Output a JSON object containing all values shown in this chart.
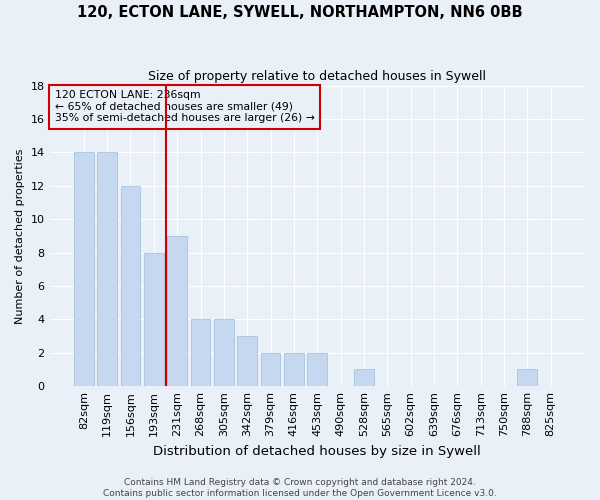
{
  "title": "120, ECTON LANE, SYWELL, NORTHAMPTON, NN6 0BB",
  "subtitle": "Size of property relative to detached houses in Sywell",
  "xlabel": "Distribution of detached houses by size in Sywell",
  "ylabel": "Number of detached properties",
  "categories": [
    "82sqm",
    "119sqm",
    "156sqm",
    "193sqm",
    "231sqm",
    "268sqm",
    "305sqm",
    "342sqm",
    "379sqm",
    "416sqm",
    "453sqm",
    "490sqm",
    "528sqm",
    "565sqm",
    "602sqm",
    "639sqm",
    "676sqm",
    "713sqm",
    "750sqm",
    "788sqm",
    "825sqm"
  ],
  "values": [
    14,
    14,
    12,
    8,
    9,
    4,
    4,
    3,
    2,
    2,
    2,
    0,
    1,
    0,
    0,
    0,
    0,
    0,
    0,
    1,
    0
  ],
  "bar_color": "#c5d8f0",
  "bar_edge_color": "#a8c4e0",
  "vline_x": 3.5,
  "vline_color": "#cc0000",
  "annotation_title": "120 ECTON LANE: 236sqm",
  "annotation_line1": "← 65% of detached houses are smaller (49)",
  "annotation_line2": "35% of semi-detached houses are larger (26) →",
  "annotation_box_color": "#cc0000",
  "ylim": [
    0,
    18
  ],
  "yticks": [
    0,
    2,
    4,
    6,
    8,
    10,
    12,
    14,
    16,
    18
  ],
  "footer_line1": "Contains HM Land Registry data © Crown copyright and database right 2024.",
  "footer_line2": "Contains public sector information licensed under the Open Government Licence v3.0.",
  "bg_color": "#eaf0f8",
  "grid_color": "#ffffff",
  "title_fontsize": 10.5,
  "subtitle_fontsize": 9,
  "xlabel_fontsize": 9.5,
  "ylabel_fontsize": 8,
  "tick_fontsize": 8,
  "footer_fontsize": 6.5
}
